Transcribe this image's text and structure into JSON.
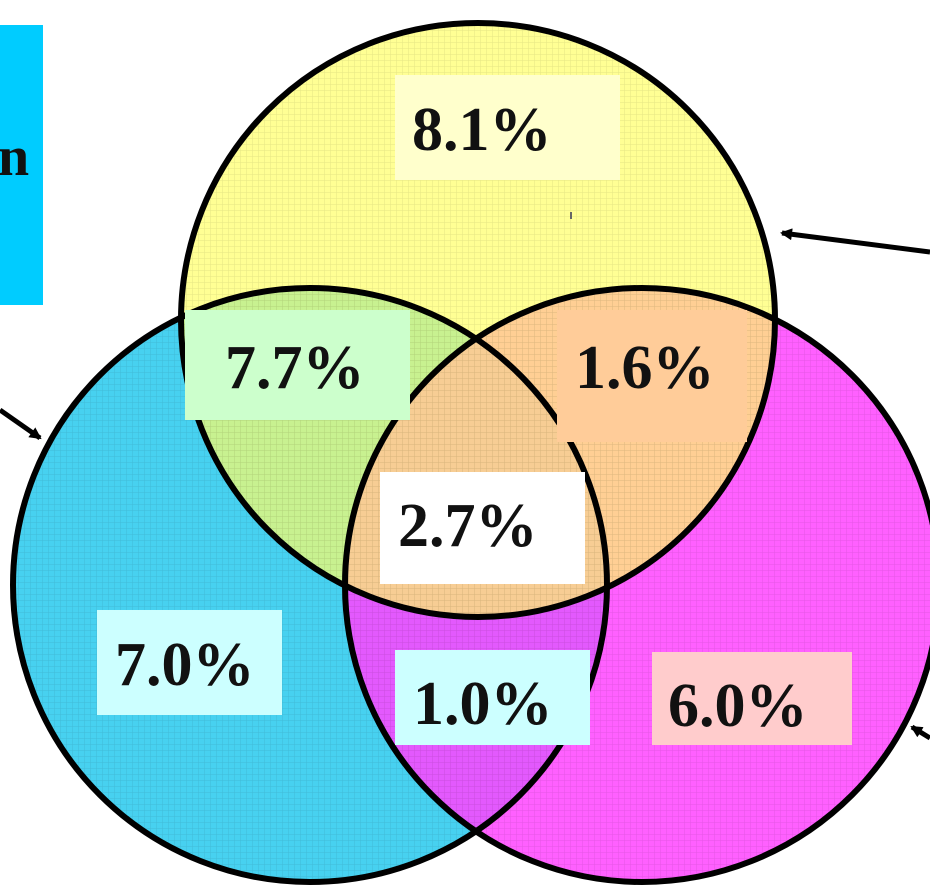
{
  "diagram": {
    "type": "venn-3",
    "colors": {
      "yellow_circle": "#ffff66",
      "blue_circle": "#33ccee",
      "pink_circle": "#ff44ff",
      "outline": "#000000",
      "note_box": "#00ccff"
    },
    "cut_off_note_char": "n",
    "regions": [
      {
        "id": "yellow_only",
        "label": "8.1%",
        "bg": "#ffffcc"
      },
      {
        "id": "yellow_blue",
        "label": "7.7%",
        "bg": "#ccffcc"
      },
      {
        "id": "yellow_pink",
        "label": "1.6%",
        "bg": "#ffcc99"
      },
      {
        "id": "center",
        "label": "2.7%",
        "bg": "#ffffff"
      },
      {
        "id": "blue_only",
        "label": "7.0%",
        "bg": "#ccffff"
      },
      {
        "id": "blue_pink",
        "label": "1.0%",
        "bg": "#ccffff"
      },
      {
        "id": "pink_only",
        "label": "6.0%",
        "bg": "#ffcccc"
      }
    ]
  }
}
